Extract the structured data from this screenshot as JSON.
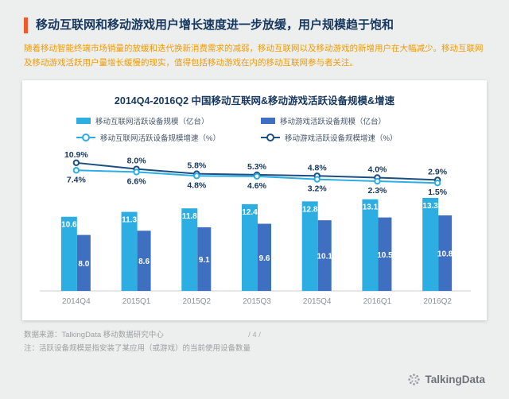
{
  "header": {
    "title": "移动互联网和移动游戏用户增长速度进一步放缓，用户规模趋于饱和",
    "description": "随着移动智能终端市场销量的放缓和迭代换新消费需求的减弱，移动互联网以及移动游戏的新增用户在大幅减少。移动互联网及移动游戏活跃用户量增长缓慢的现实，值得包括移动游戏在内的移动互联网参与者关注。",
    "accent_color": "#f0592b",
    "description_color": "#f39a00"
  },
  "chart": {
    "title": "2014Q4-2016Q2 中国移动互联网&移动游戏活跃设备规模&增速"
  },
  "chart_data": {
    "type": "bar+line combo",
    "title": "2014Q4-2016Q2 中国移动互联网&移动游戏活跃设备规模&增速",
    "categories": [
      "2014Q4",
      "2015Q1",
      "2015Q2",
      "2015Q3",
      "2015Q4",
      "2016Q1",
      "2016Q2"
    ],
    "series": [
      {
        "name": "移动互联网活跃设备规模（亿台）",
        "kind": "bar",
        "color": "#2caee3",
        "values": [
          10.6,
          11.3,
          11.8,
          12.4,
          12.8,
          13.1,
          13.3
        ]
      },
      {
        "name": "移动游戏活跃设备规模（亿台）",
        "kind": "bar",
        "color": "#3f6fc0",
        "values": [
          8.0,
          8.6,
          9.1,
          9.6,
          10.1,
          10.5,
          10.8
        ]
      },
      {
        "name": "移动互联网活跃设备规模增速（%）",
        "kind": "line",
        "color": "#2caee3",
        "values": [
          7.4,
          6.6,
          4.8,
          4.6,
          3.2,
          2.3,
          1.5
        ]
      },
      {
        "name": "移动游戏活跃设备规模增速（%）",
        "kind": "line",
        "color": "#1c4e80",
        "values": [
          10.9,
          8.0,
          5.8,
          5.3,
          4.8,
          4.0,
          2.9
        ]
      }
    ],
    "bar_axis_range": [
      0,
      14
    ],
    "bar_unit": "亿台",
    "line_unit": "%",
    "grid": false,
    "legend_position": "top-center",
    "value_label_color_bars": "#ffffff",
    "value_label_color_lines": "#17375e",
    "category_label_color": "#8b9196"
  },
  "footer": {
    "source": "数据来源：TalkingData 移动数据研究中心",
    "page_number": "/ 4 /",
    "note": "注：活跃设备规模是指安装了某应用（或游戏）的当前使用设备数量"
  },
  "logo": {
    "text": "TalkingData"
  }
}
